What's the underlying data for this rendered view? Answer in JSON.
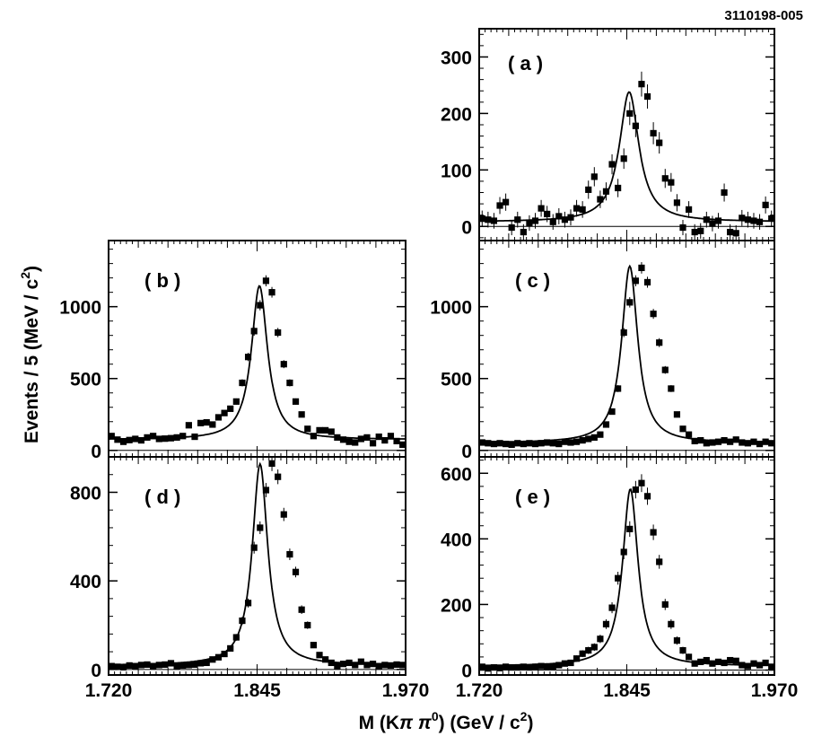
{
  "figure_id": "3110198-005",
  "axis_titles": {
    "x_prefix": "M (K",
    "x_pi": "π π",
    "x_sup": "0",
    "x_mid": ") (GeV / c",
    "x_sup2": "2",
    "x_end": ")",
    "y_main": "Events / 5 (MeV / c",
    "y_sup": "2",
    "y_end": ")"
  },
  "chart_data": [
    {
      "id": "a",
      "type": "scatter",
      "label": "( a )",
      "xlim": [
        1.72,
        1.97
      ],
      "ylim": [
        -25,
        350
      ],
      "xticks": [
        1.72,
        1.845,
        1.97
      ],
      "yticks": [
        0,
        100,
        200,
        300
      ],
      "fit": {
        "peak": 1.847,
        "sigma": 0.0095,
        "amp": 230,
        "bkg": 8
      },
      "points": [
        [
          1.7225,
          14
        ],
        [
          1.7275,
          12
        ],
        [
          1.7325,
          10
        ],
        [
          1.7375,
          37
        ],
        [
          1.7425,
          43
        ],
        [
          1.7475,
          -2
        ],
        [
          1.7525,
          12
        ],
        [
          1.7575,
          -10
        ],
        [
          1.7625,
          6
        ],
        [
          1.7675,
          10
        ],
        [
          1.7725,
          32
        ],
        [
          1.7775,
          22
        ],
        [
          1.7825,
          8
        ],
        [
          1.7875,
          18
        ],
        [
          1.7925,
          12
        ],
        [
          1.7975,
          16
        ],
        [
          1.8025,
          32
        ],
        [
          1.8075,
          30
        ],
        [
          1.8125,
          65
        ],
        [
          1.8175,
          88
        ],
        [
          1.8225,
          48
        ],
        [
          1.8275,
          62
        ],
        [
          1.8325,
          110
        ],
        [
          1.8375,
          68
        ],
        [
          1.8425,
          120
        ],
        [
          1.8475,
          200
        ],
        [
          1.8525,
          178
        ],
        [
          1.8575,
          252
        ],
        [
          1.8625,
          230
        ],
        [
          1.8675,
          165
        ],
        [
          1.8725,
          148
        ],
        [
          1.8775,
          85
        ],
        [
          1.8825,
          78
        ],
        [
          1.8875,
          42
        ],
        [
          1.8925,
          -2
        ],
        [
          1.8975,
          30
        ],
        [
          1.9025,
          -10
        ],
        [
          1.9075,
          -8
        ],
        [
          1.9125,
          12
        ],
        [
          1.9175,
          5
        ],
        [
          1.9225,
          10
        ],
        [
          1.9275,
          60
        ],
        [
          1.9325,
          -10
        ],
        [
          1.9375,
          -12
        ],
        [
          1.9425,
          15
        ],
        [
          1.9475,
          12
        ],
        [
          1.9525,
          10
        ],
        [
          1.9575,
          8
        ],
        [
          1.9625,
          38
        ],
        [
          1.9675,
          14
        ]
      ]
    },
    {
      "id": "b",
      "type": "scatter",
      "label": "( b )",
      "xlim": [
        1.72,
        1.97
      ],
      "ylim": [
        -45,
        1460
      ],
      "xticks": [
        1.72,
        1.845,
        1.97
      ],
      "yticks": [
        0,
        500,
        1000
      ],
      "fit": {
        "peak": 1.847,
        "sigma": 0.0078,
        "amp": 1070,
        "bkg": 75
      },
      "points": [
        [
          1.7225,
          100
        ],
        [
          1.7275,
          75
        ],
        [
          1.7325,
          60
        ],
        [
          1.7375,
          72
        ],
        [
          1.7425,
          80
        ],
        [
          1.7475,
          70
        ],
        [
          1.7525,
          90
        ],
        [
          1.7575,
          100
        ],
        [
          1.7625,
          80
        ],
        [
          1.7675,
          82
        ],
        [
          1.7725,
          85
        ],
        [
          1.7775,
          90
        ],
        [
          1.7825,
          100
        ],
        [
          1.7875,
          175
        ],
        [
          1.7925,
          95
        ],
        [
          1.7975,
          190
        ],
        [
          1.8025,
          195
        ],
        [
          1.8075,
          180
        ],
        [
          1.8125,
          230
        ],
        [
          1.8175,
          260
        ],
        [
          1.8225,
          290
        ],
        [
          1.8275,
          340
        ],
        [
          1.8325,
          470
        ],
        [
          1.8375,
          650
        ],
        [
          1.8425,
          830
        ],
        [
          1.8475,
          1010
        ],
        [
          1.8525,
          1180
        ],
        [
          1.8575,
          1100
        ],
        [
          1.8625,
          820
        ],
        [
          1.8675,
          600
        ],
        [
          1.8725,
          470
        ],
        [
          1.8775,
          340
        ],
        [
          1.8825,
          250
        ],
        [
          1.8875,
          150
        ],
        [
          1.8925,
          100
        ],
        [
          1.8975,
          140
        ],
        [
          1.9025,
          140
        ],
        [
          1.9075,
          130
        ],
        [
          1.9125,
          90
        ],
        [
          1.9175,
          75
        ],
        [
          1.9225,
          60
        ],
        [
          1.9275,
          55
        ],
        [
          1.9325,
          80
        ],
        [
          1.9375,
          90
        ],
        [
          1.9425,
          50
        ],
        [
          1.9475,
          95
        ],
        [
          1.9525,
          70
        ],
        [
          1.9575,
          100
        ],
        [
          1.9625,
          65
        ],
        [
          1.9675,
          40
        ]
      ]
    },
    {
      "id": "c",
      "type": "scatter",
      "label": "( c )",
      "xlim": [
        1.72,
        1.97
      ],
      "ylim": [
        -45,
        1460
      ],
      "xticks": [
        1.72,
        1.845,
        1.97
      ],
      "yticks": [
        0,
        500,
        1000
      ],
      "fit": {
        "peak": 1.8475,
        "sigma": 0.0078,
        "amp": 1230,
        "bkg": 52
      },
      "points": [
        [
          1.7225,
          55
        ],
        [
          1.7275,
          50
        ],
        [
          1.7325,
          45
        ],
        [
          1.7375,
          50
        ],
        [
          1.7425,
          45
        ],
        [
          1.7475,
          40
        ],
        [
          1.7525,
          50
        ],
        [
          1.7575,
          45
        ],
        [
          1.7625,
          50
        ],
        [
          1.7675,
          45
        ],
        [
          1.7725,
          50
        ],
        [
          1.7775,
          55
        ],
        [
          1.7825,
          50
        ],
        [
          1.7875,
          45
        ],
        [
          1.7925,
          60
        ],
        [
          1.7975,
          55
        ],
        [
          1.8025,
          60
        ],
        [
          1.8075,
          70
        ],
        [
          1.8125,
          80
        ],
        [
          1.8175,
          90
        ],
        [
          1.8225,
          110
        ],
        [
          1.8275,
          180
        ],
        [
          1.8325,
          270
        ],
        [
          1.8375,
          430
        ],
        [
          1.8425,
          820
        ],
        [
          1.8475,
          1030
        ],
        [
          1.8525,
          1180
        ],
        [
          1.8575,
          1270
        ],
        [
          1.8625,
          1170
        ],
        [
          1.8675,
          950
        ],
        [
          1.8725,
          750
        ],
        [
          1.8775,
          560
        ],
        [
          1.8825,
          430
        ],
        [
          1.8875,
          250
        ],
        [
          1.8925,
          150
        ],
        [
          1.8975,
          110
        ],
        [
          1.9025,
          65
        ],
        [
          1.9075,
          70
        ],
        [
          1.9125,
          50
        ],
        [
          1.9175,
          55
        ],
        [
          1.9225,
          60
        ],
        [
          1.9275,
          70
        ],
        [
          1.9325,
          60
        ],
        [
          1.9375,
          75
        ],
        [
          1.9425,
          55
        ],
        [
          1.9475,
          50
        ],
        [
          1.9525,
          60
        ],
        [
          1.9575,
          45
        ],
        [
          1.9625,
          60
        ],
        [
          1.9675,
          50
        ]
      ]
    },
    {
      "id": "d",
      "type": "scatter",
      "label": "( d )",
      "xlim": [
        1.72,
        1.97
      ],
      "ylim": [
        -25,
        960
      ],
      "xticks": [
        1.72,
        1.845,
        1.97
      ],
      "yticks": [
        0,
        400,
        800
      ],
      "fit": {
        "peak": 1.8475,
        "sigma": 0.0075,
        "amp": 910,
        "bkg": 18
      },
      "points": [
        [
          1.7225,
          15
        ],
        [
          1.7275,
          12
        ],
        [
          1.7325,
          10
        ],
        [
          1.7375,
          18
        ],
        [
          1.7425,
          15
        ],
        [
          1.7475,
          20
        ],
        [
          1.7525,
          22
        ],
        [
          1.7575,
          15
        ],
        [
          1.7625,
          20
        ],
        [
          1.7675,
          22
        ],
        [
          1.7725,
          28
        ],
        [
          1.7775,
          15
        ],
        [
          1.7825,
          18
        ],
        [
          1.7875,
          20
        ],
        [
          1.7925,
          22
        ],
        [
          1.7975,
          28
        ],
        [
          1.8025,
          30
        ],
        [
          1.8075,
          45
        ],
        [
          1.8125,
          55
        ],
        [
          1.8175,
          70
        ],
        [
          1.8225,
          95
        ],
        [
          1.8275,
          145
        ],
        [
          1.8325,
          220
        ],
        [
          1.8375,
          300
        ],
        [
          1.8425,
          550
        ],
        [
          1.8475,
          640
        ],
        [
          1.8525,
          810
        ],
        [
          1.8575,
          930
        ],
        [
          1.8625,
          870
        ],
        [
          1.8675,
          700
        ],
        [
          1.8725,
          520
        ],
        [
          1.8775,
          440
        ],
        [
          1.8825,
          270
        ],
        [
          1.8875,
          200
        ],
        [
          1.8925,
          110
        ],
        [
          1.8975,
          65
        ],
        [
          1.9025,
          45
        ],
        [
          1.9075,
          30
        ],
        [
          1.9125,
          15
        ],
        [
          1.9175,
          25
        ],
        [
          1.9225,
          30
        ],
        [
          1.9275,
          20
        ],
        [
          1.9325,
          35
        ],
        [
          1.9375,
          20
        ],
        [
          1.9425,
          25
        ],
        [
          1.9475,
          15
        ],
        [
          1.9525,
          20
        ],
        [
          1.9575,
          18
        ],
        [
          1.9625,
          22
        ],
        [
          1.9675,
          20
        ]
      ]
    },
    {
      "id": "e",
      "type": "scatter",
      "label": "( e )",
      "xlim": [
        1.72,
        1.97
      ],
      "ylim": [
        -15,
        650
      ],
      "xticks": [
        1.72,
        1.845,
        1.97
      ],
      "yticks": [
        0,
        200,
        400,
        600
      ],
      "fit": {
        "peak": 1.848,
        "sigma": 0.0075,
        "amp": 540,
        "bkg": 12
      },
      "points": [
        [
          1.7225,
          10
        ],
        [
          1.7275,
          5
        ],
        [
          1.7325,
          8
        ],
        [
          1.7375,
          6
        ],
        [
          1.7425,
          10
        ],
        [
          1.7475,
          8
        ],
        [
          1.7525,
          8
        ],
        [
          1.7575,
          10
        ],
        [
          1.7625,
          8
        ],
        [
          1.7675,
          10
        ],
        [
          1.7725,
          12
        ],
        [
          1.7775,
          10
        ],
        [
          1.7825,
          10
        ],
        [
          1.7875,
          15
        ],
        [
          1.7925,
          20
        ],
        [
          1.7975,
          22
        ],
        [
          1.8025,
          35
        ],
        [
          1.8075,
          50
        ],
        [
          1.8125,
          60
        ],
        [
          1.8175,
          70
        ],
        [
          1.8225,
          95
        ],
        [
          1.8275,
          140
        ],
        [
          1.8325,
          190
        ],
        [
          1.8375,
          280
        ],
        [
          1.8425,
          360
        ],
        [
          1.8475,
          430
        ],
        [
          1.8525,
          550
        ],
        [
          1.8575,
          570
        ],
        [
          1.8625,
          530
        ],
        [
          1.8675,
          420
        ],
        [
          1.8725,
          330
        ],
        [
          1.8775,
          200
        ],
        [
          1.8825,
          140
        ],
        [
          1.8875,
          90
        ],
        [
          1.8925,
          60
        ],
        [
          1.8975,
          40
        ],
        [
          1.9025,
          20
        ],
        [
          1.9075,
          25
        ],
        [
          1.9125,
          30
        ],
        [
          1.9175,
          20
        ],
        [
          1.9225,
          25
        ],
        [
          1.9275,
          22
        ],
        [
          1.9325,
          30
        ],
        [
          1.9375,
          28
        ],
        [
          1.9425,
          15
        ],
        [
          1.9475,
          12
        ],
        [
          1.9525,
          20
        ],
        [
          1.9575,
          15
        ],
        [
          1.9625,
          22
        ],
        [
          1.9675,
          10
        ]
      ]
    }
  ]
}
